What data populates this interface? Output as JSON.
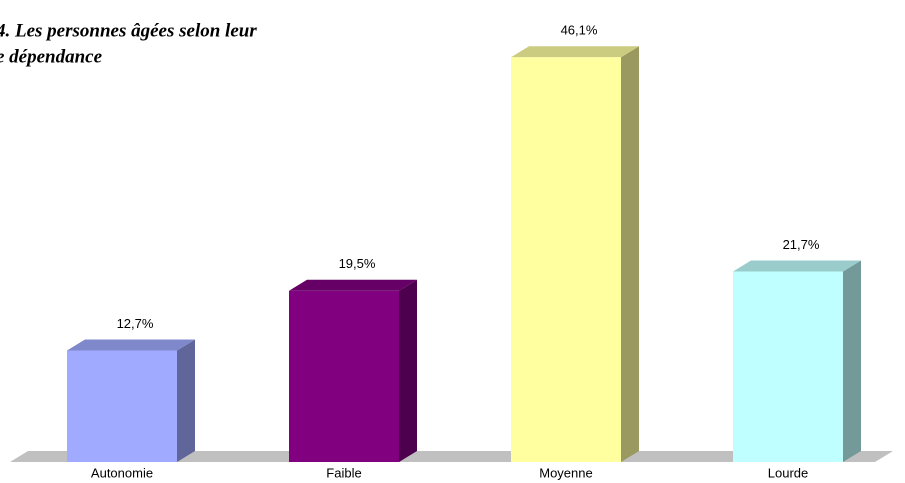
{
  "chart_data": {
    "type": "bar3d",
    "title": [
      "4. Les personnes âgées selon leur",
      "e dépendance"
    ],
    "categories": [
      "Autonomie",
      "Faible",
      "Moyenne",
      "Lourde"
    ],
    "values": [
      12.7,
      19.5,
      46.1,
      21.7
    ],
    "value_labels": [
      "12,7%",
      "19,5%",
      "46,1%",
      "21,7%"
    ],
    "colors": [
      "#a0aaff",
      "#800080",
      "#ffffa0",
      "#c0ffff"
    ]
  }
}
